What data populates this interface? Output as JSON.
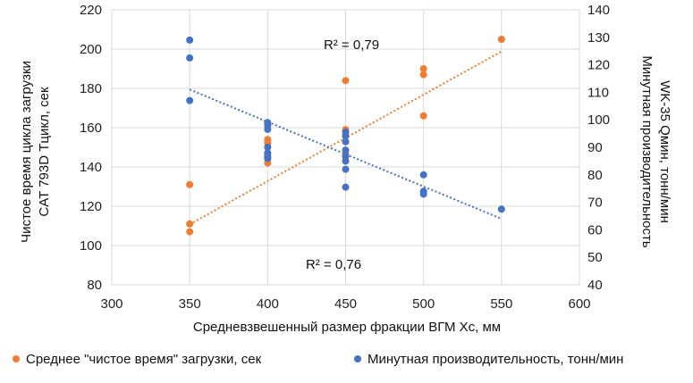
{
  "chart_data": {
    "type": "scatter",
    "x_axis": {
      "label": "Средневзвешенный размер фракции ВГМ Xc, мм",
      "range": [
        300,
        600
      ],
      "ticks": [
        300,
        350,
        400,
        450,
        500,
        550,
        600
      ]
    },
    "y_axis_left": {
      "label_line1": "Чистое время цикла загрузки",
      "label_line2": "CAT 793D Тцикл, сек",
      "range": [
        80,
        220
      ],
      "ticks": [
        80,
        100,
        120,
        140,
        160,
        180,
        200,
        220
      ]
    },
    "y_axis_right": {
      "label_line1": "Минутная производительность",
      "label_line2": "WK-35  Qмин, тонн/мин",
      "range": [
        40,
        140
      ],
      "ticks": [
        40,
        50,
        60,
        70,
        80,
        90,
        100,
        110,
        120,
        130,
        140
      ]
    },
    "grid": {
      "horizontal": true,
      "vertical": true
    },
    "legend_position": "bottom",
    "series": [
      {
        "name": "Среднее \"чистое время\" загрузки, сек",
        "axis": "left",
        "color": "#ED7D31",
        "points": [
          [
            350,
            131
          ],
          [
            350,
            111
          ],
          [
            350,
            107
          ],
          [
            400,
            154
          ],
          [
            400,
            153
          ],
          [
            400,
            152
          ],
          [
            400,
            147
          ],
          [
            400,
            145
          ],
          [
            400,
            144
          ],
          [
            400,
            142
          ],
          [
            450,
            184
          ],
          [
            450,
            159
          ],
          [
            450,
            156
          ],
          [
            450,
            147
          ],
          [
            450,
            145
          ],
          [
            450,
            143
          ],
          [
            500,
            190
          ],
          [
            500,
            187
          ],
          [
            500,
            166
          ],
          [
            550,
            205
          ]
        ],
        "trendline": {
          "x": [
            350,
            550
          ],
          "y": [
            110.8,
            198.8
          ]
        },
        "r2_label": "R² = 0,79"
      },
      {
        "name": "Минутная производительность, тонн/мин",
        "axis": "right",
        "color": "#4472C4",
        "points": [
          [
            350,
            129
          ],
          [
            350,
            122.5
          ],
          [
            350,
            107
          ],
          [
            400,
            99
          ],
          [
            400,
            98
          ],
          [
            400,
            96.5
          ],
          [
            400,
            90
          ],
          [
            400,
            88
          ],
          [
            400,
            87
          ],
          [
            400,
            86
          ],
          [
            450,
            95.5
          ],
          [
            450,
            94
          ],
          [
            450,
            92
          ],
          [
            450,
            89
          ],
          [
            450,
            87
          ],
          [
            450,
            85
          ],
          [
            450,
            82
          ],
          [
            450,
            75.5
          ],
          [
            500,
            80
          ],
          [
            500,
            74
          ],
          [
            500,
            73
          ],
          [
            550,
            67.5
          ]
        ],
        "trendline": {
          "x": [
            350,
            550
          ],
          "y": [
            111,
            64
          ]
        },
        "r2_label": "R² = 0,76"
      }
    ]
  }
}
